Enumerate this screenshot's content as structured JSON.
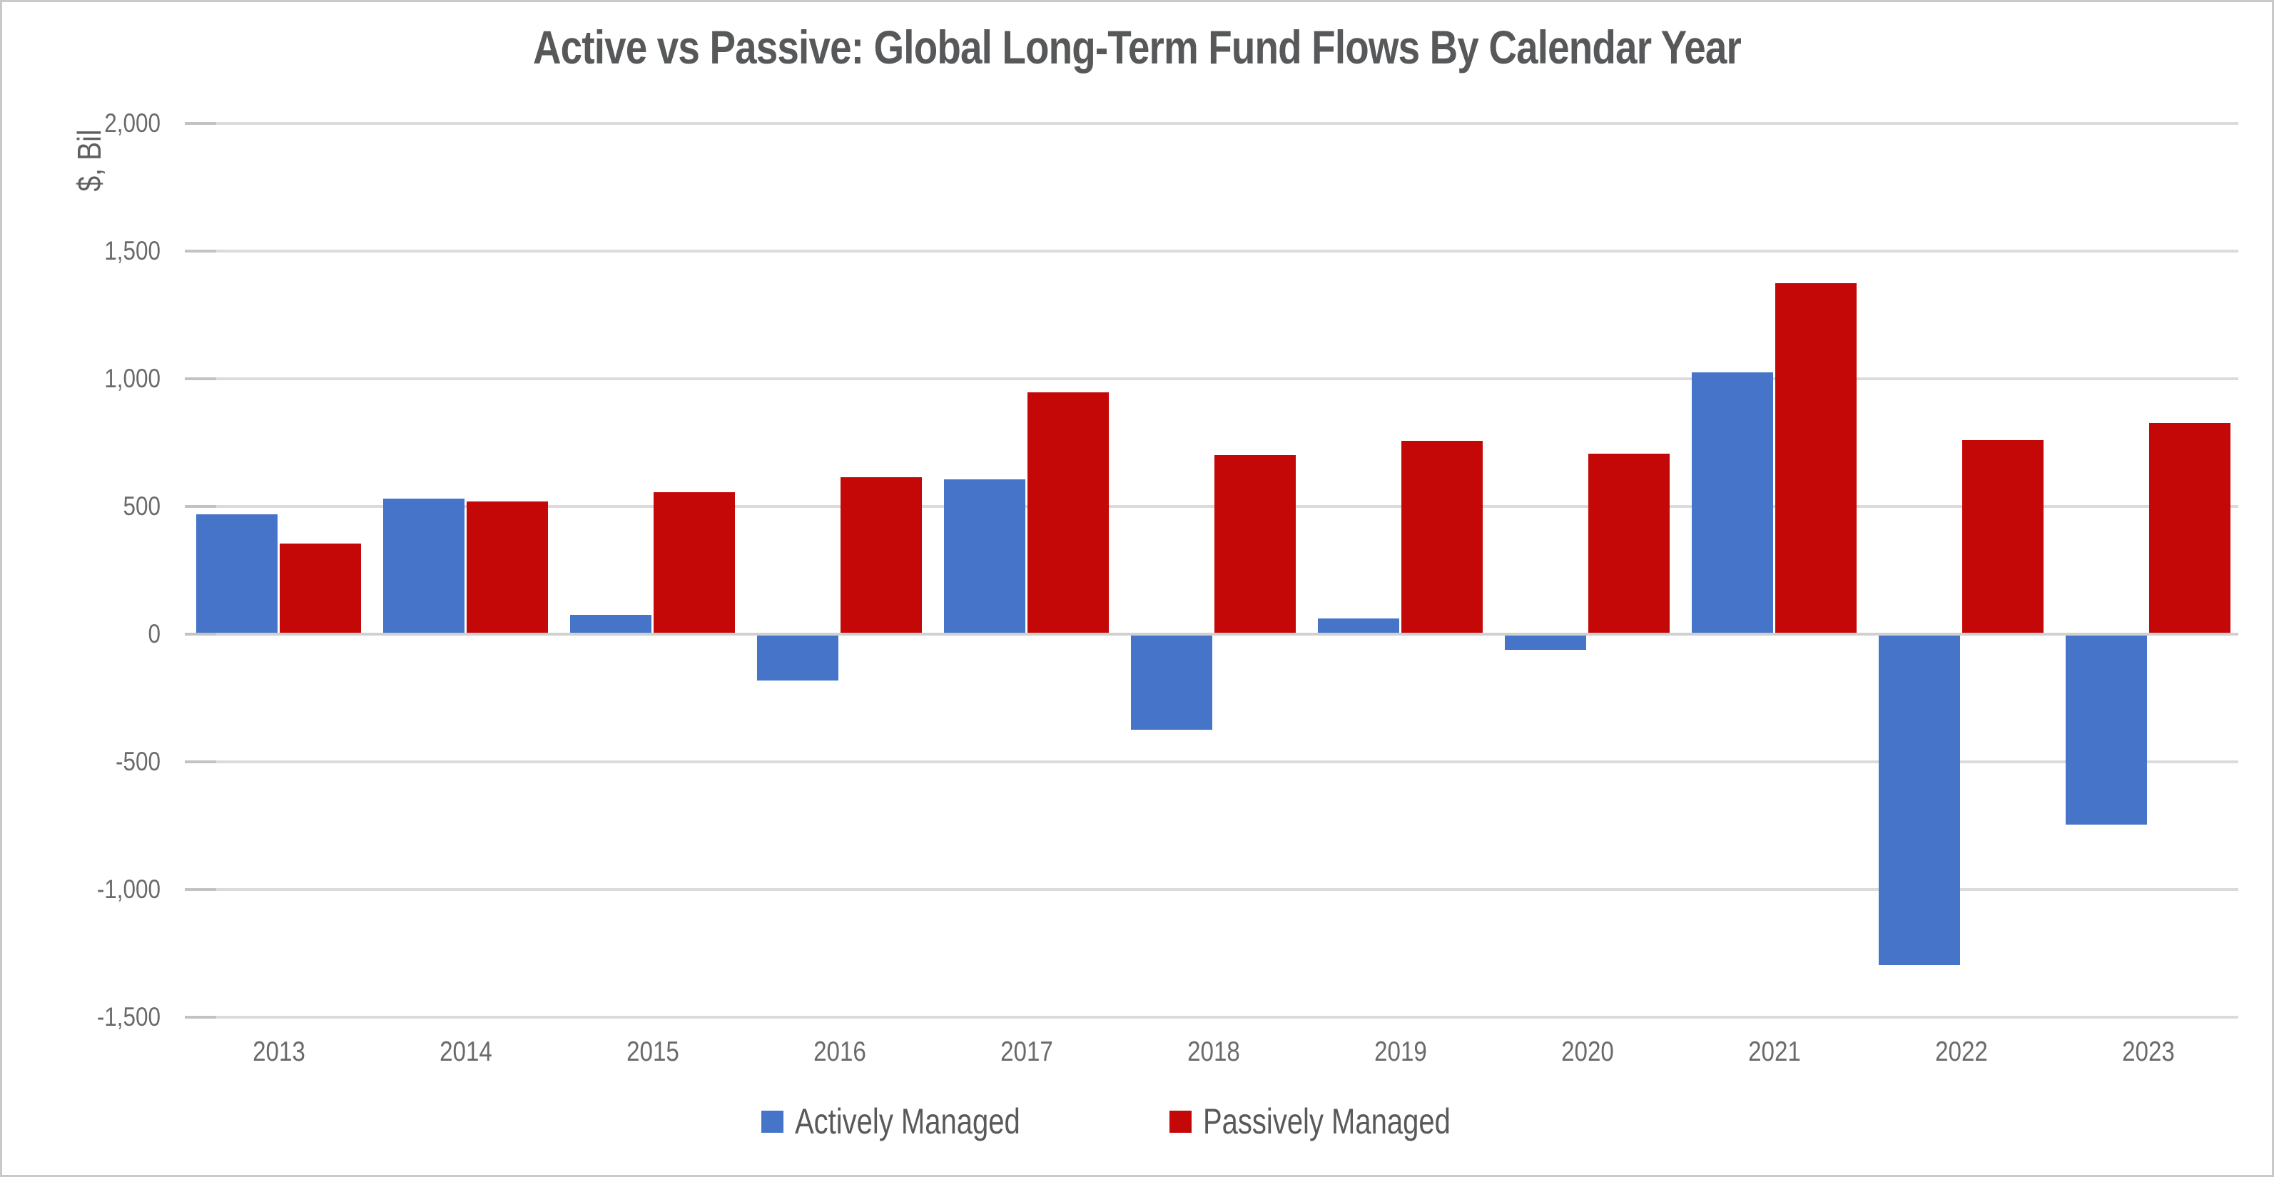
{
  "title": "Active vs Passive: Global Long-Term Fund Flows By Calendar Year",
  "chart_data": {
    "type": "bar",
    "title": "Active vs Passive: Global Long-Term Fund Flows By Calendar Year",
    "ylabel": "$, Bil",
    "xlabel": "",
    "categories": [
      "2013",
      "2014",
      "2015",
      "2016",
      "2017",
      "2018",
      "2019",
      "2020",
      "2021",
      "2022",
      "2023"
    ],
    "series": [
      {
        "name": "Actively Managed",
        "color": "#4574C8",
        "values": [
          465,
          525,
          70,
          -175,
          600,
          -370,
          55,
          -55,
          1020,
          -1290,
          -740
        ]
      },
      {
        "name": "Passively Managed",
        "color": "#C40808",
        "values": [
          350,
          515,
          550,
          610,
          940,
          695,
          750,
          700,
          1370,
          755,
          820
        ]
      }
    ],
    "ylim": [
      -1500,
      2000
    ],
    "ytick_interval": 500,
    "ytick_labels": [
      "2,000",
      "1,500",
      "1,000",
      "500",
      "0",
      "-500",
      "-1,000",
      "-1,500"
    ],
    "grid": true,
    "legend_position": "bottom"
  }
}
